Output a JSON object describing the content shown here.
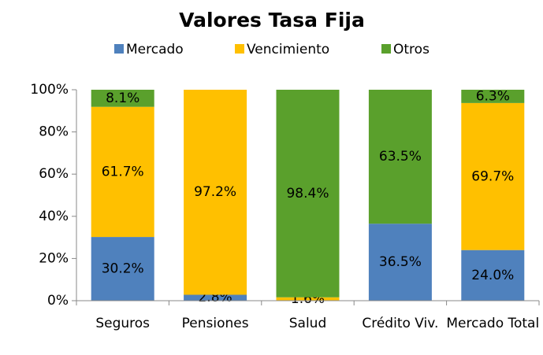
{
  "chart_data": {
    "type": "stacked_bar",
    "title": "Valores Tasa Fija",
    "categories": [
      "Seguros",
      "Pensiones",
      "Salud",
      "Crédito Viv.",
      "Mercado Total"
    ],
    "series": [
      {
        "name": "Mercado",
        "color": "#4f81bd",
        "values": [
          30.2,
          2.8,
          0,
          36.5,
          24.0
        ],
        "value_labels": [
          "30.2%",
          "2.8%",
          null,
          "36.5%",
          "24.0%"
        ]
      },
      {
        "name": "Vencimiento",
        "color": "#ffc000",
        "values": [
          61.7,
          97.2,
          1.6,
          0,
          69.7
        ],
        "value_labels": [
          "61.7%",
          "97.2%",
          "1.6%",
          null,
          "69.7%"
        ]
      },
      {
        "name": "Otros",
        "color": "#5aa02c",
        "values": [
          8.1,
          0,
          98.4,
          63.5,
          6.3
        ],
        "value_labels": [
          "8.1%",
          null,
          "98.4%",
          "63.5%",
          "6.3%"
        ]
      }
    ],
    "ylim": [
      0,
      100
    ],
    "yticks": [
      {
        "value": 0,
        "label": "0%"
      },
      {
        "value": 20,
        "label": "20%"
      },
      {
        "value": 40,
        "label": "40%"
      },
      {
        "value": 60,
        "label": "60%"
      },
      {
        "value": 80,
        "label": "80%"
      },
      {
        "value": 100,
        "label": "100%"
      }
    ],
    "legend": "top"
  }
}
